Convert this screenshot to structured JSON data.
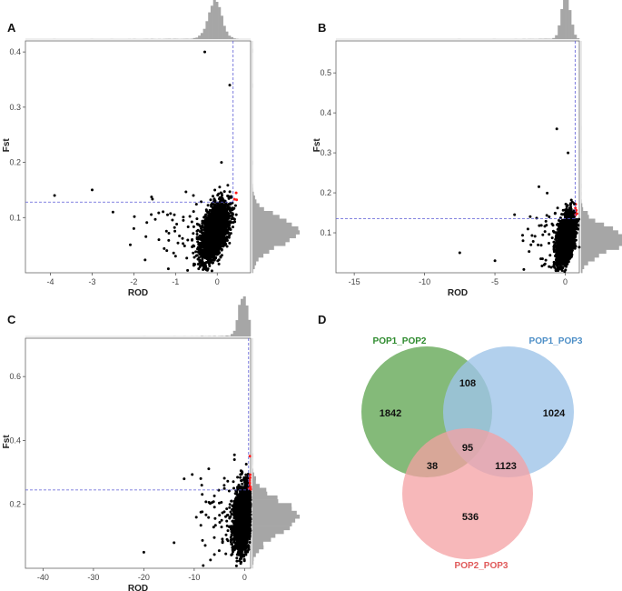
{
  "panels": [
    {
      "id": "A",
      "label": "A",
      "xlabel": "ROD",
      "ylabel": "Fst",
      "xticks": [
        -4,
        -3,
        -2,
        -1,
        0
      ],
      "yticks": [
        0.1,
        0.2,
        0.3,
        0.4
      ],
      "xlim": [
        -4.6,
        0.8
      ],
      "ylim": [
        0.0,
        0.42
      ],
      "threshold_rod": 0.38,
      "threshold_fst": 0.128,
      "cluster": {
        "rod_mean": -0.05,
        "rod_sd": 0.16,
        "fst_mean": 0.075,
        "fst_sd": 0.025,
        "corr": 0.5
      },
      "outliers": [
        [
          -3.9,
          0.14
        ],
        [
          -3.0,
          0.15
        ],
        [
          -2.5,
          0.11
        ],
        [
          -2.0,
          0.08
        ],
        [
          -1.4,
          0.06
        ],
        [
          -1.0,
          0.03
        ],
        [
          -0.3,
          0.4
        ],
        [
          0.3,
          0.34
        ],
        [
          0.1,
          0.2
        ]
      ]
    },
    {
      "id": "B",
      "label": "B",
      "xlabel": "ROD",
      "ylabel": "Fst",
      "xticks": [
        -15,
        -10,
        -5,
        0
      ],
      "yticks": [
        0.1,
        0.2,
        0.3,
        0.4,
        0.5
      ],
      "xlim": [
        -16.3,
        1.0
      ],
      "ylim": [
        0.0,
        0.58
      ],
      "threshold_rod": 0.7,
      "threshold_fst": 0.135,
      "cluster": {
        "rod_mean": 0.05,
        "rod_sd": 0.3,
        "fst_mean": 0.085,
        "fst_sd": 0.03,
        "corr": 0.5
      },
      "outliers": [
        [
          -7.5,
          0.05
        ],
        [
          -5.0,
          0.03
        ],
        [
          -3.0,
          0.08
        ],
        [
          -1.5,
          0.02
        ],
        [
          -0.6,
          0.36
        ],
        [
          0.2,
          0.3
        ]
      ]
    },
    {
      "id": "C",
      "label": "C",
      "xlabel": "ROD",
      "ylabel": "Fst",
      "xticks": [
        -40,
        -30,
        -20,
        -10,
        0
      ],
      "yticks": [
        0.2,
        0.4,
        0.6
      ],
      "xlim": [
        -43.5,
        1.2
      ],
      "ylim": [
        0.0,
        0.72
      ],
      "threshold_rod": 0.8,
      "threshold_fst": 0.245,
      "cluster": {
        "rod_mean": -0.3,
        "rod_sd": 0.9,
        "fst_mean": 0.16,
        "fst_sd": 0.05,
        "corr": 0.3
      },
      "outliers": [
        [
          -20.0,
          0.05
        ],
        [
          -14.0,
          0.08
        ],
        [
          -12.0,
          0.28
        ],
        [
          -8.5,
          0.26
        ],
        [
          -4.0,
          0.25
        ],
        [
          -2.0,
          0.34
        ]
      ]
    }
  ],
  "venn": {
    "label": "D",
    "sets": [
      {
        "name": "POP1_POP2",
        "color": "#2e8b2e",
        "fill": "#6fae62"
      },
      {
        "name": "POP1_POP3",
        "color": "#4e8fc7",
        "fill": "#9fc4e8"
      },
      {
        "name": "POP2_POP3",
        "color": "#e05a5a",
        "fill": "#f4a0a3"
      }
    ],
    "counts": {
      "only_12": "1842",
      "only_13": "1024",
      "only_23": "536",
      "ab": "108",
      "ac": "38",
      "bc": "1123",
      "abc": "95"
    }
  },
  "colors": {
    "points": "#000000",
    "highlight": "#ff1a1a",
    "threshold": "#5b5bd6",
    "histogram": "#a6a6a6"
  }
}
